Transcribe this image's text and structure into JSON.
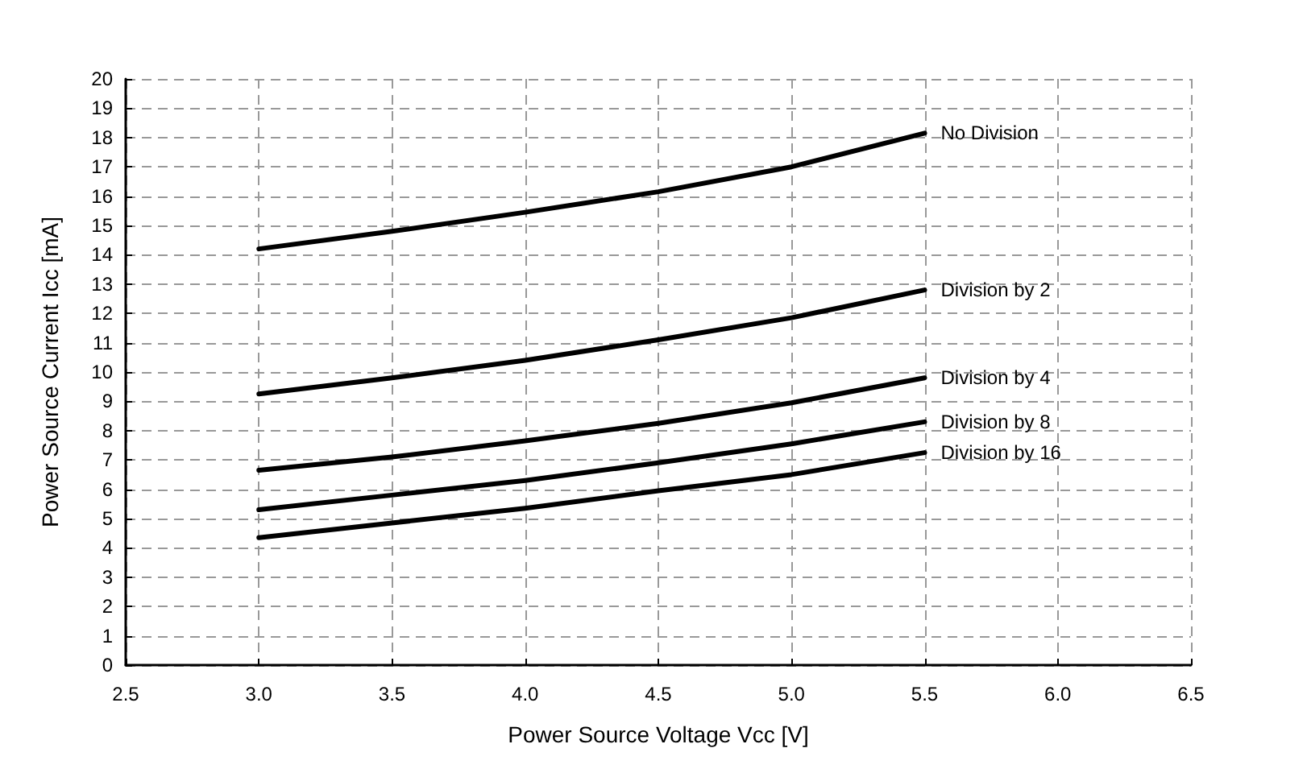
{
  "chart_data": {
    "type": "line",
    "xlabel": "Power Source Voltage Vcc [V]",
    "ylabel": "Power Source Current Icc [mA]",
    "x": [
      3.0,
      3.5,
      4.0,
      4.5,
      5.0,
      5.5
    ],
    "series": [
      {
        "name": "No Division",
        "color": "#000000",
        "values": [
          14.2,
          14.8,
          15.45,
          16.15,
          17.0,
          18.15
        ]
      },
      {
        "name": "Division by 2",
        "color": "#000000",
        "values": [
          9.25,
          9.8,
          10.4,
          11.1,
          11.85,
          12.8
        ]
      },
      {
        "name": "Division by 4",
        "color": "#000000",
        "values": [
          6.65,
          7.1,
          7.65,
          8.25,
          8.95,
          9.8
        ]
      },
      {
        "name": "Division by 8",
        "color": "#000000",
        "values": [
          5.3,
          5.8,
          6.3,
          6.9,
          7.55,
          8.3
        ]
      },
      {
        "name": "Division by 16",
        "color": "#000000",
        "values": [
          4.35,
          4.85,
          5.35,
          5.95,
          6.5,
          7.25
        ]
      }
    ],
    "xlim": [
      2.5,
      6.5
    ],
    "xticks": [
      {
        "value": 2.5,
        "label": "2.5"
      },
      {
        "value": 3,
        "label": "3.0"
      },
      {
        "value": 3.5,
        "label": "3.5"
      },
      {
        "value": 4,
        "label": "4.0"
      },
      {
        "value": 4.5,
        "label": "4.5"
      },
      {
        "value": 5,
        "label": "5.0"
      },
      {
        "value": 5.5,
        "label": "5.5"
      },
      {
        "value": 6,
        "label": "6.0"
      },
      {
        "value": 6.5,
        "label": "6.5"
      }
    ],
    "ylim": [
      0,
      20
    ],
    "yticks": [
      0,
      1,
      2,
      3,
      4,
      5,
      6,
      7,
      8,
      9,
      10,
      11,
      12,
      13,
      14,
      15,
      16,
      17,
      18,
      19,
      20
    ],
    "grid": true,
    "legend": false,
    "marker": "none",
    "line_style": "solid"
  }
}
